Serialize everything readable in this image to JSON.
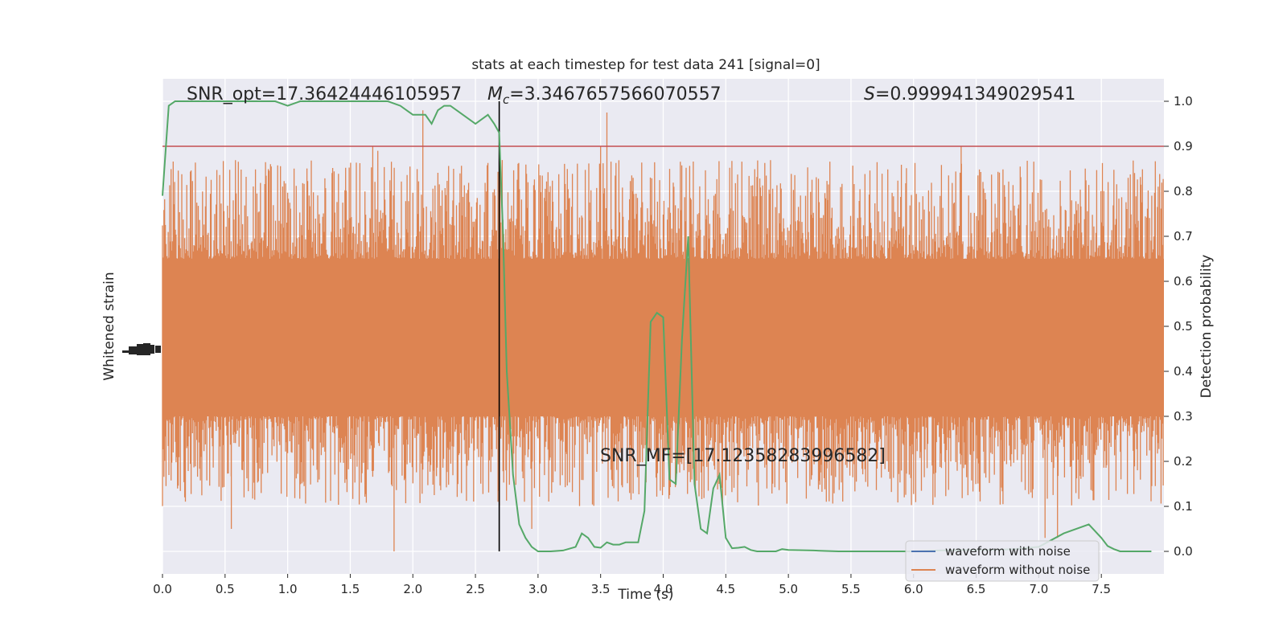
{
  "chart_data": {
    "type": "line",
    "title": "stats at each timestep for test data 241 [signal=0]",
    "xlabel": "Time (s)",
    "ylabel_left": "Whitened strain",
    "ylabel_right": "Detection probability",
    "xlim": [
      0.0,
      8.0
    ],
    "ylim_right": [
      -0.05,
      1.05
    ],
    "x_ticks": [
      "0.0",
      "0.5",
      "1.0",
      "1.5",
      "2.0",
      "2.5",
      "3.0",
      "3.5",
      "4.0",
      "4.5",
      "5.0",
      "5.5",
      "6.0",
      "6.5",
      "7.0",
      "7.5"
    ],
    "y_ticks_right": [
      "0.0",
      "0.1",
      "0.2",
      "0.3",
      "0.4",
      "0.5",
      "0.6",
      "0.7",
      "0.8",
      "0.9",
      "1.0"
    ],
    "grid": true,
    "annotations": {
      "snr_opt": "SNR_opt=17.36424446105957",
      "mc_symbol": "M",
      "mc_sub": "c",
      "mc_value": "=3.3467657566070557",
      "s_symbol": "S",
      "s_value": "=0.999941349029541",
      "snr_mf": "SNR_MF=[17.12358283996582]"
    },
    "threshold": 0.9,
    "vline_time": 2.69,
    "legend": {
      "placement": "lower-right",
      "entries": [
        "waveform with noise",
        "waveform without noise"
      ]
    },
    "series": [
      {
        "name": "Detection probability",
        "x": [
          0.0,
          0.05,
          0.1,
          0.2,
          0.3,
          0.4,
          0.5,
          0.6,
          0.7,
          0.8,
          0.9,
          1.0,
          1.1,
          1.2,
          1.3,
          1.4,
          1.5,
          1.6,
          1.7,
          1.8,
          1.9,
          2.0,
          2.05,
          2.1,
          2.15,
          2.2,
          2.25,
          2.3,
          2.35,
          2.4,
          2.5,
          2.55,
          2.6,
          2.65,
          2.69,
          2.72,
          2.75,
          2.8,
          2.85,
          2.9,
          2.95,
          3.0,
          3.05,
          3.1,
          3.2,
          3.3,
          3.35,
          3.4,
          3.45,
          3.5,
          3.55,
          3.6,
          3.65,
          3.7,
          3.8,
          3.85,
          3.9,
          3.95,
          4.0,
          4.05,
          4.1,
          4.15,
          4.2,
          4.25,
          4.3,
          4.35,
          4.4,
          4.45,
          4.5,
          4.55,
          4.6,
          4.65,
          4.7,
          4.75,
          4.8,
          4.85,
          4.9,
          4.95,
          5.0,
          5.2,
          5.4,
          5.6,
          5.8,
          6.0,
          6.2,
          6.4,
          6.6,
          6.8,
          7.0,
          7.2,
          7.4,
          7.5,
          7.55,
          7.6,
          7.65,
          7.7,
          7.8,
          7.9
        ],
        "y": [
          0.79,
          0.99,
          1.0,
          1.0,
          1.0,
          1.0,
          1.0,
          1.0,
          1.0,
          1.0,
          1.0,
          0.99,
          1.0,
          1.0,
          1.0,
          1.0,
          1.0,
          1.0,
          1.0,
          1.0,
          0.99,
          0.97,
          0.97,
          0.97,
          0.95,
          0.98,
          0.99,
          0.99,
          0.98,
          0.97,
          0.95,
          0.96,
          0.97,
          0.95,
          0.93,
          0.71,
          0.4,
          0.17,
          0.06,
          0.03,
          0.01,
          0.0,
          0.0,
          0.0,
          0.002,
          0.01,
          0.04,
          0.03,
          0.01,
          0.008,
          0.02,
          0.015,
          0.015,
          0.02,
          0.02,
          0.09,
          0.51,
          0.53,
          0.52,
          0.16,
          0.15,
          0.47,
          0.7,
          0.15,
          0.05,
          0.04,
          0.14,
          0.17,
          0.03,
          0.007,
          0.008,
          0.01,
          0.003,
          0.0,
          0.0,
          0.0,
          0.0,
          0.005,
          0.003,
          0.002,
          0.0,
          0.0,
          0.0,
          0.0,
          0.002,
          0.003,
          0.003,
          0.005,
          0.01,
          0.04,
          0.06,
          0.03,
          0.012,
          0.005,
          0.0,
          0.0,
          0.0,
          0.0
        ],
        "color": "#55a868"
      },
      {
        "name": "waveform without noise",
        "type": "noise-band",
        "center": 0.45,
        "band_low": 0.3,
        "band_high": 0.65,
        "spike_min": 0.0,
        "spike_max": 0.975,
        "color": "#dd8452"
      },
      {
        "name": "waveform with noise",
        "color": "#4c72b0"
      }
    ],
    "colors": {
      "background": "#eaeaf2",
      "grid": "#ffffff",
      "threshold": "#c44e52",
      "vline": "#000000"
    }
  }
}
